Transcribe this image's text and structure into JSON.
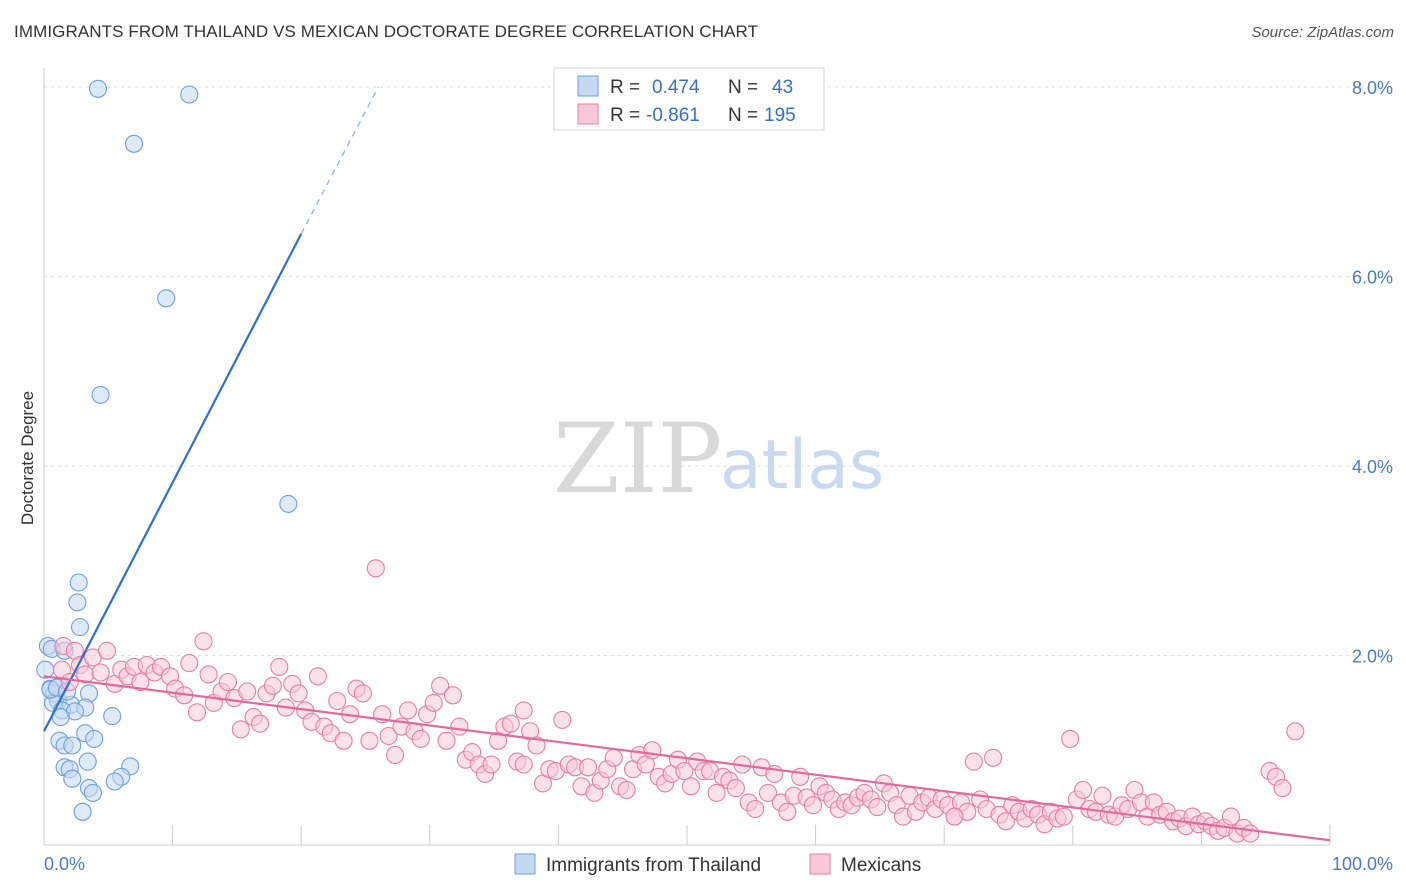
{
  "chart_data": {
    "type": "scatter",
    "title": "IMMIGRANTS FROM THAILAND VS MEXICAN DOCTORATE DEGREE CORRELATION CHART",
    "source": "Source: ZipAtlas.com",
    "xlabel": "",
    "ylabel": "Doctorate Degree",
    "xlim": [
      0,
      100
    ],
    "ylim": [
      0,
      8.2
    ],
    "x_tick_labels": [
      "0.0%",
      "100.0%"
    ],
    "y_ticks": [
      2,
      4,
      6,
      8
    ],
    "y_tick_labels": [
      "2.0%",
      "4.0%",
      "6.0%",
      "8.0%"
    ],
    "grid": true,
    "watermark": {
      "zip": "ZIP",
      "atlas": "atlas"
    },
    "legend": {
      "r_label": "R =",
      "n_label": "N =",
      "entries": [
        {
          "r": "0.474",
          "n": "43"
        },
        {
          "r": "-0.861",
          "n": "195"
        }
      ]
    },
    "series": [
      {
        "name": "Immigrants from Thailand",
        "color": "#6f9fdc",
        "fill": "#c5d9f3",
        "trend": {
          "x0": 0,
          "y0": 1.2,
          "x1": 20,
          "y1": 6.45,
          "dash_to_x": 26,
          "dash_to_y": 8.0
        },
        "points": [
          [
            4.2,
            7.98
          ],
          [
            11.3,
            7.92
          ],
          [
            7,
            7.4
          ],
          [
            9.5,
            5.77
          ],
          [
            4.4,
            4.75
          ],
          [
            19,
            3.6
          ],
          [
            2.7,
            2.77
          ],
          [
            2.6,
            2.56
          ],
          [
            2.8,
            2.3
          ],
          [
            0.3,
            2.1
          ],
          [
            0.6,
            2.07
          ],
          [
            1.6,
            2.05
          ],
          [
            0.1,
            1.85
          ],
          [
            0.5,
            1.65
          ],
          [
            1.2,
            1.68
          ],
          [
            0.8,
            1.6
          ],
          [
            3.5,
            1.6
          ],
          [
            1.1,
            1.52
          ],
          [
            2.1,
            1.48
          ],
          [
            0.7,
            1.5
          ],
          [
            3.2,
            1.45
          ],
          [
            1.4,
            1.42
          ],
          [
            2.4,
            1.41
          ],
          [
            1.3,
            1.35
          ],
          [
            5.3,
            1.36
          ],
          [
            3.2,
            1.18
          ],
          [
            3.9,
            1.12
          ],
          [
            1.2,
            1.1
          ],
          [
            1.6,
            1.05
          ],
          [
            2.2,
            1.05
          ],
          [
            3.4,
            0.88
          ],
          [
            1.6,
            0.82
          ],
          [
            2.0,
            0.8
          ],
          [
            6.7,
            0.83
          ],
          [
            6.0,
            0.72
          ],
          [
            2.2,
            0.7
          ],
          [
            5.5,
            0.67
          ],
          [
            3.5,
            0.6
          ],
          [
            3.8,
            0.55
          ],
          [
            3.0,
            0.35
          ],
          [
            0.5,
            1.64
          ],
          [
            1.0,
            1.66
          ],
          [
            1.8,
            1.62
          ]
        ]
      },
      {
        "name": "Mexicans",
        "color": "#e77fa2",
        "fill": "#f8c8d8",
        "trend": {
          "x0": 0,
          "y0": 1.78,
          "x1": 100,
          "y1": 0.05
        },
        "points": [
          [
            1.5,
            2.1
          ],
          [
            2.4,
            2.05
          ],
          [
            2.8,
            1.9
          ],
          [
            1.4,
            1.85
          ],
          [
            2.0,
            1.72
          ],
          [
            3.2,
            1.8
          ],
          [
            3.8,
            1.98
          ],
          [
            4.4,
            1.82
          ],
          [
            4.9,
            2.05
          ],
          [
            5.5,
            1.7
          ],
          [
            6.0,
            1.85
          ],
          [
            6.5,
            1.78
          ],
          [
            7.0,
            1.88
          ],
          [
            7.5,
            1.72
          ],
          [
            8.0,
            1.9
          ],
          [
            8.6,
            1.82
          ],
          [
            9.1,
            1.88
          ],
          [
            9.8,
            1.78
          ],
          [
            10.2,
            1.65
          ],
          [
            10.9,
            1.58
          ],
          [
            11.3,
            1.92
          ],
          [
            11.9,
            1.4
          ],
          [
            12.4,
            2.15
          ],
          [
            12.8,
            1.8
          ],
          [
            13.2,
            1.5
          ],
          [
            13.8,
            1.62
          ],
          [
            14.3,
            1.72
          ],
          [
            14.8,
            1.55
          ],
          [
            15.3,
            1.22
          ],
          [
            15.8,
            1.62
          ],
          [
            16.3,
            1.35
          ],
          [
            16.8,
            1.28
          ],
          [
            17.3,
            1.6
          ],
          [
            17.8,
            1.68
          ],
          [
            18.3,
            1.88
          ],
          [
            18.8,
            1.45
          ],
          [
            19.3,
            1.7
          ],
          [
            19.8,
            1.6
          ],
          [
            20.3,
            1.42
          ],
          [
            20.8,
            1.3
          ],
          [
            21.3,
            1.78
          ],
          [
            21.8,
            1.25
          ],
          [
            22.3,
            1.18
          ],
          [
            22.8,
            1.52
          ],
          [
            23.3,
            1.1
          ],
          [
            23.8,
            1.38
          ],
          [
            24.3,
            1.65
          ],
          [
            24.8,
            1.6
          ],
          [
            25.3,
            1.1
          ],
          [
            25.8,
            2.92
          ],
          [
            26.3,
            1.38
          ],
          [
            26.8,
            1.15
          ],
          [
            27.3,
            0.95
          ],
          [
            27.8,
            1.25
          ],
          [
            28.3,
            1.42
          ],
          [
            28.8,
            1.2
          ],
          [
            29.3,
            1.12
          ],
          [
            29.8,
            1.38
          ],
          [
            30.3,
            1.5
          ],
          [
            30.8,
            1.68
          ],
          [
            31.3,
            1.1
          ],
          [
            31.8,
            1.58
          ],
          [
            32.3,
            1.25
          ],
          [
            32.8,
            0.9
          ],
          [
            33.3,
            0.98
          ],
          [
            33.8,
            0.85
          ],
          [
            34.3,
            0.75
          ],
          [
            34.8,
            0.85
          ],
          [
            35.3,
            1.1
          ],
          [
            35.8,
            1.25
          ],
          [
            36.3,
            1.28
          ],
          [
            36.8,
            0.88
          ],
          [
            37.3,
            0.85
          ],
          [
            37.8,
            1.2
          ],
          [
            38.3,
            1.05
          ],
          [
            38.8,
            0.65
          ],
          [
            39.3,
            0.8
          ],
          [
            39.8,
            0.78
          ],
          [
            40.3,
            1.32
          ],
          [
            40.8,
            0.85
          ],
          [
            41.3,
            0.82
          ],
          [
            41.8,
            0.62
          ],
          [
            42.3,
            0.82
          ],
          [
            42.8,
            0.55
          ],
          [
            43.3,
            0.68
          ],
          [
            43.8,
            0.8
          ],
          [
            44.3,
            0.92
          ],
          [
            44.8,
            0.62
          ],
          [
            45.3,
            0.58
          ],
          [
            45.8,
            0.8
          ],
          [
            46.3,
            0.95
          ],
          [
            46.8,
            0.85
          ],
          [
            47.3,
            1.0
          ],
          [
            47.8,
            0.72
          ],
          [
            48.3,
            0.65
          ],
          [
            48.8,
            0.75
          ],
          [
            49.3,
            0.9
          ],
          [
            49.8,
            0.78
          ],
          [
            50.3,
            0.62
          ],
          [
            50.8,
            0.88
          ],
          [
            51.3,
            0.78
          ],
          [
            51.8,
            0.78
          ],
          [
            52.3,
            0.55
          ],
          [
            52.8,
            0.72
          ],
          [
            53.3,
            0.68
          ],
          [
            53.8,
            0.6
          ],
          [
            54.3,
            0.85
          ],
          [
            54.8,
            0.45
          ],
          [
            55.3,
            0.38
          ],
          [
            55.8,
            0.82
          ],
          [
            56.3,
            0.55
          ],
          [
            56.8,
            0.75
          ],
          [
            57.3,
            0.45
          ],
          [
            57.8,
            0.35
          ],
          [
            58.3,
            0.52
          ],
          [
            58.8,
            0.72
          ],
          [
            59.3,
            0.5
          ],
          [
            59.8,
            0.42
          ],
          [
            60.3,
            0.62
          ],
          [
            60.8,
            0.55
          ],
          [
            61.3,
            0.48
          ],
          [
            61.8,
            0.38
          ],
          [
            62.3,
            0.45
          ],
          [
            62.8,
            0.42
          ],
          [
            63.3,
            0.5
          ],
          [
            63.8,
            0.55
          ],
          [
            64.3,
            0.48
          ],
          [
            64.8,
            0.4
          ],
          [
            65.3,
            0.65
          ],
          [
            65.8,
            0.55
          ],
          [
            66.3,
            0.42
          ],
          [
            66.8,
            0.3
          ],
          [
            67.3,
            0.52
          ],
          [
            67.8,
            0.35
          ],
          [
            68.3,
            0.45
          ],
          [
            68.8,
            0.5
          ],
          [
            69.3,
            0.38
          ],
          [
            69.8,
            0.48
          ],
          [
            70.3,
            0.42
          ],
          [
            70.8,
            0.3
          ],
          [
            71.3,
            0.45
          ],
          [
            71.8,
            0.35
          ],
          [
            72.3,
            0.88
          ],
          [
            72.8,
            0.48
          ],
          [
            73.3,
            0.38
          ],
          [
            73.8,
            0.92
          ],
          [
            74.3,
            0.32
          ],
          [
            74.8,
            0.25
          ],
          [
            75.3,
            0.42
          ],
          [
            75.8,
            0.35
          ],
          [
            76.3,
            0.28
          ],
          [
            76.8,
            0.38
          ],
          [
            77.3,
            0.32
          ],
          [
            77.8,
            0.22
          ],
          [
            78.3,
            0.35
          ],
          [
            78.8,
            0.28
          ],
          [
            79.3,
            0.3
          ],
          [
            79.8,
            1.12
          ],
          [
            80.3,
            0.48
          ],
          [
            80.8,
            0.58
          ],
          [
            81.3,
            0.38
          ],
          [
            81.8,
            0.35
          ],
          [
            82.3,
            0.52
          ],
          [
            82.8,
            0.32
          ],
          [
            83.3,
            0.3
          ],
          [
            83.8,
            0.42
          ],
          [
            84.3,
            0.38
          ],
          [
            84.8,
            0.58
          ],
          [
            85.3,
            0.45
          ],
          [
            85.8,
            0.3
          ],
          [
            86.3,
            0.45
          ],
          [
            86.8,
            0.32
          ],
          [
            87.3,
            0.35
          ],
          [
            87.8,
            0.25
          ],
          [
            88.3,
            0.28
          ],
          [
            88.8,
            0.2
          ],
          [
            89.3,
            0.3
          ],
          [
            89.8,
            0.22
          ],
          [
            90.3,
            0.25
          ],
          [
            90.8,
            0.2
          ],
          [
            91.3,
            0.15
          ],
          [
            91.8,
            0.18
          ],
          [
            92.3,
            0.3
          ],
          [
            92.8,
            0.12
          ],
          [
            93.3,
            0.18
          ],
          [
            93.8,
            0.12
          ],
          [
            95.3,
            0.78
          ],
          [
            95.8,
            0.72
          ],
          [
            96.3,
            0.6
          ],
          [
            97.3,
            1.2
          ],
          [
            37.3,
            1.42
          ],
          [
            70.8,
            0.3
          ]
        ]
      }
    ]
  }
}
